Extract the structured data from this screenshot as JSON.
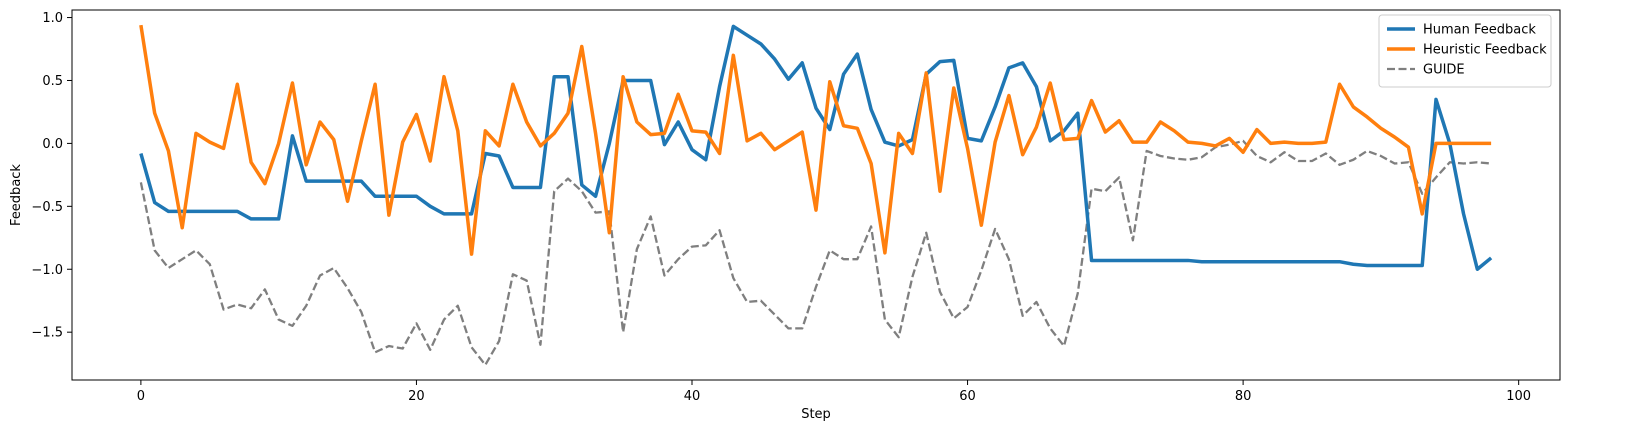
{
  "chart_data": {
    "type": "line",
    "xlabel": "Step",
    "ylabel": "Feedback",
    "xlim": [
      -5,
      103
    ],
    "ylim": [
      -1.88,
      1.06
    ],
    "x_ticks": [
      0,
      20,
      40,
      60,
      80,
      100
    ],
    "y_ticks": [
      -1.5,
      -1.0,
      -0.5,
      0.0,
      0.5,
      1.0
    ],
    "x_tick_labels": [
      "0",
      "20",
      "40",
      "60",
      "80",
      "100"
    ],
    "y_tick_labels": [
      "−1.5",
      "−1.0",
      "−0.5",
      "0.0",
      "0.5",
      "1.0"
    ],
    "grid": false,
    "legend_position": "top-right",
    "x": [
      0,
      1,
      2,
      3,
      4,
      5,
      6,
      7,
      8,
      9,
      10,
      11,
      12,
      13,
      14,
      15,
      16,
      17,
      18,
      19,
      20,
      21,
      22,
      23,
      24,
      25,
      26,
      27,
      28,
      29,
      30,
      31,
      32,
      33,
      34,
      35,
      36,
      37,
      38,
      39,
      40,
      41,
      42,
      43,
      44,
      45,
      46,
      47,
      48,
      49,
      50,
      51,
      52,
      53,
      54,
      55,
      56,
      57,
      58,
      59,
      60,
      61,
      62,
      63,
      64,
      65,
      66,
      67,
      68,
      69,
      70,
      71,
      72,
      73,
      74,
      75,
      76,
      77,
      78,
      79,
      80,
      81,
      82,
      83,
      84,
      85,
      86,
      87,
      88,
      89,
      90,
      91,
      92,
      93,
      94,
      95,
      96,
      97,
      98
    ],
    "series": [
      {
        "name": "Human Feedback",
        "color": "#1f77b4",
        "style": "solid",
        "values": [
          -0.08,
          -0.47,
          -0.54,
          -0.54,
          -0.54,
          -0.54,
          -0.54,
          -0.54,
          -0.6,
          -0.6,
          -0.6,
          0.06,
          -0.3,
          -0.3,
          -0.3,
          -0.3,
          -0.3,
          -0.42,
          -0.42,
          -0.42,
          -0.42,
          -0.5,
          -0.56,
          -0.56,
          -0.56,
          -0.08,
          -0.1,
          -0.35,
          -0.35,
          -0.35,
          0.53,
          0.53,
          -0.33,
          -0.42,
          0.0,
          0.5,
          0.5,
          0.5,
          -0.01,
          0.17,
          -0.05,
          -0.13,
          0.45,
          0.93,
          0.86,
          0.79,
          0.67,
          0.51,
          0.64,
          0.28,
          0.11,
          0.55,
          0.71,
          0.27,
          0.01,
          -0.02,
          0.03,
          0.55,
          0.65,
          0.66,
          0.04,
          0.02,
          0.29,
          0.6,
          0.64,
          0.45,
          0.02,
          0.1,
          0.24,
          -0.93,
          -0.93,
          -0.93,
          -0.93,
          -0.93,
          -0.93,
          -0.93,
          -0.93,
          -0.94,
          -0.94,
          -0.94,
          -0.94,
          -0.94,
          -0.94,
          -0.94,
          -0.94,
          -0.94,
          -0.94,
          -0.94,
          -0.96,
          -0.97,
          -0.97,
          -0.97,
          -0.97,
          -0.97,
          0.35,
          0.0,
          -0.56,
          -1.0,
          -0.91
        ]
      },
      {
        "name": "Heuristic Feedback",
        "color": "#ff7f0e",
        "style": "solid",
        "values": [
          0.94,
          0.24,
          -0.06,
          -0.67,
          0.08,
          0.01,
          -0.04,
          0.47,
          -0.15,
          -0.32,
          0.0,
          0.48,
          -0.17,
          0.17,
          0.03,
          -0.46,
          0.02,
          0.47,
          -0.57,
          0.01,
          0.23,
          -0.14,
          0.53,
          0.1,
          -0.88,
          0.1,
          -0.02,
          0.47,
          0.17,
          -0.02,
          0.08,
          0.24,
          0.77,
          0.08,
          -0.71,
          0.53,
          0.17,
          0.07,
          0.08,
          0.39,
          0.1,
          0.09,
          -0.08,
          0.7,
          0.02,
          0.08,
          -0.05,
          0.02,
          0.09,
          -0.53,
          0.49,
          0.14,
          0.12,
          -0.16,
          -0.87,
          0.08,
          -0.08,
          0.56,
          -0.38,
          0.44,
          -0.04,
          -0.65,
          0.01,
          0.38,
          -0.09,
          0.13,
          0.48,
          0.03,
          0.04,
          0.34,
          0.09,
          0.18,
          0.01,
          0.01,
          0.17,
          0.1,
          0.01,
          0.0,
          -0.02,
          0.04,
          -0.07,
          0.11,
          0.0,
          0.01,
          0.0,
          0.0,
          0.01,
          0.47,
          0.29,
          0.21,
          0.12,
          0.05,
          -0.03,
          -0.56,
          0.0,
          0.0,
          0.0,
          0.0,
          0.0
        ]
      },
      {
        "name": "GUIDE",
        "color": "#7f7f7f",
        "style": "dashed",
        "values": [
          -0.31,
          -0.85,
          -0.99,
          -0.92,
          -0.85,
          -0.96,
          -1.32,
          -1.28,
          -1.31,
          -1.16,
          -1.4,
          -1.45,
          -1.29,
          -1.05,
          -0.99,
          -1.15,
          -1.34,
          -1.66,
          -1.61,
          -1.63,
          -1.43,
          -1.64,
          -1.4,
          -1.29,
          -1.62,
          -1.76,
          -1.57,
          -1.04,
          -1.09,
          -1.6,
          -0.38,
          -0.28,
          -0.38,
          -0.55,
          -0.54,
          -1.5,
          -0.84,
          -0.58,
          -1.05,
          -0.92,
          -0.82,
          -0.81,
          -0.69,
          -1.07,
          -1.26,
          -1.25,
          -1.36,
          -1.47,
          -1.47,
          -1.14,
          -0.85,
          -0.92,
          -0.92,
          -0.66,
          -1.4,
          -1.54,
          -1.06,
          -0.71,
          -1.18,
          -1.39,
          -1.3,
          -1.01,
          -0.68,
          -0.92,
          -1.37,
          -1.26,
          -1.47,
          -1.61,
          -1.19,
          -0.36,
          -0.38,
          -0.27,
          -0.77,
          -0.06,
          -0.1,
          -0.12,
          -0.13,
          -0.11,
          -0.03,
          -0.01,
          0.02,
          -0.1,
          -0.15,
          -0.07,
          -0.14,
          -0.14,
          -0.08,
          -0.17,
          -0.13,
          -0.06,
          -0.1,
          -0.16,
          -0.15,
          -0.4,
          -0.27,
          -0.15,
          -0.16,
          -0.15,
          -0.16
        ]
      }
    ]
  }
}
